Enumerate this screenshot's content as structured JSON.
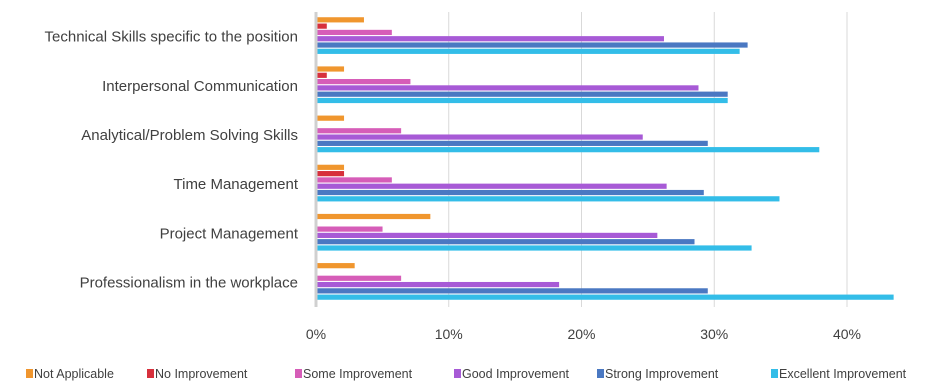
{
  "chart_data": {
    "type": "bar",
    "orientation": "horizontal",
    "categories": [
      "Technical Skills specific to the position",
      "Interpersonal Communication",
      "Analytical/Problem Solving Skills",
      "Time Management",
      "Project Management",
      "Professionalism in the workplace"
    ],
    "series": [
      {
        "name": "Not Applicable",
        "color": "#F0962E",
        "values": [
          3.5,
          2.0,
          2.0,
          2.0,
          8.5,
          2.8
        ]
      },
      {
        "name": "No Improvement",
        "color": "#D7303C",
        "values": [
          0.7,
          0.7,
          0.0,
          2.0,
          0.0,
          0.0
        ]
      },
      {
        "name": "Some Improvement",
        "color": "#D65DB8",
        "values": [
          5.6,
          7.0,
          6.3,
          5.6,
          4.9,
          6.3
        ]
      },
      {
        "name": "Good Improvement",
        "color": "#A75AD6",
        "values": [
          26.1,
          28.7,
          24.5,
          26.3,
          25.6,
          18.2
        ]
      },
      {
        "name": "Strong Improvement",
        "color": "#4A78C2",
        "values": [
          32.4,
          30.9,
          29.4,
          29.1,
          28.4,
          29.4
        ]
      },
      {
        "name": "Excellent Improvement",
        "color": "#33BDE8",
        "values": [
          31.8,
          30.9,
          37.8,
          34.8,
          32.7,
          43.4
        ]
      }
    ],
    "xlim": [
      0,
      45
    ],
    "x_ticks": [
      0,
      10,
      20,
      30,
      40
    ],
    "tick_labels": [
      "0%",
      "10%",
      "20%",
      "30%",
      "40%"
    ],
    "grid": true,
    "legend_position": "bottom"
  }
}
